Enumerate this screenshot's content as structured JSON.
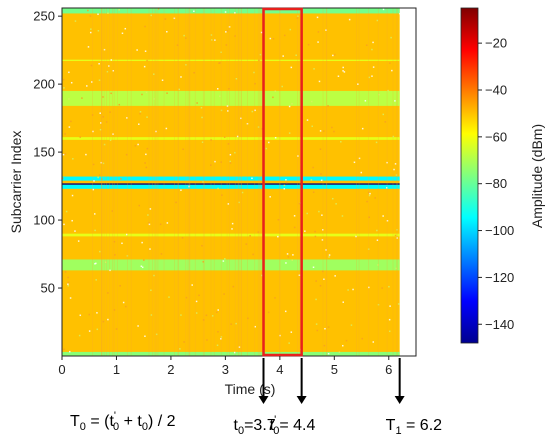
{
  "chart_data": {
    "type": "heatmap",
    "xlabel": "Time (s)",
    "ylabel": "Subcarrier Index",
    "colorbar_label": "Amplitude (dBm)",
    "xlim": [
      0,
      6.5
    ],
    "ylim": [
      0,
      256
    ],
    "x_ticks": [
      0,
      1,
      2,
      3,
      4,
      5,
      6
    ],
    "y_ticks": [
      50,
      100,
      150,
      200,
      250
    ],
    "colorbar_range": [
      -148,
      -5
    ],
    "colorbar_ticks": [
      -140,
      -120,
      -100,
      -80,
      -60,
      -40,
      -20
    ],
    "colormap": "jet",
    "data_end_time": 6.2,
    "dominant_amplitude_dbm": -50,
    "bands": [
      {
        "subcarriers": [
          0,
          3
        ],
        "amplitude_dbm": -75
      },
      {
        "subcarriers": [
          63,
          71
        ],
        "amplitude_dbm": -72
      },
      {
        "subcarriers": [
          88,
          90
        ],
        "amplitude_dbm": -62
      },
      {
        "subcarriers": [
          123,
          126
        ],
        "amplitude_dbm": -95
      },
      {
        "subcarriers": [
          126,
          127
        ],
        "amplitude_dbm": -150
      },
      {
        "subcarriers": [
          129,
          132
        ],
        "amplitude_dbm": -95
      },
      {
        "subcarriers": [
          159,
          161
        ],
        "amplitude_dbm": -62
      },
      {
        "subcarriers": [
          184,
          195
        ],
        "amplitude_dbm": -68
      },
      {
        "subcarriers": [
          217,
          218
        ],
        "amplitude_dbm": -62
      },
      {
        "subcarriers": [
          252,
          256
        ],
        "amplitude_dbm": -78
      }
    ],
    "highlight_window": {
      "t_start": 3.7,
      "t_end": 4.4,
      "color": "#e8201c"
    },
    "markers": [
      {
        "t": 3.7,
        "label_main": "t",
        "label_sub": "0",
        "label_sup": "",
        "label_value": "=3.7"
      },
      {
        "t": 4.4,
        "label_main": "t",
        "label_sub": "0",
        "label_sup": "'",
        "label_value": "= 4.4"
      },
      {
        "t": 6.2,
        "label_main": "T",
        "label_sub": "1",
        "label_sup": "",
        "label_value": " = 6.2"
      }
    ],
    "formula": {
      "lhs_main": "T",
      "lhs_sub": "0",
      "eq": " = (t",
      "t1_sup": "'",
      "t1_sub": "0",
      "plus": " + t",
      "t2_sub": "0",
      "rhs": ") / 2"
    }
  }
}
